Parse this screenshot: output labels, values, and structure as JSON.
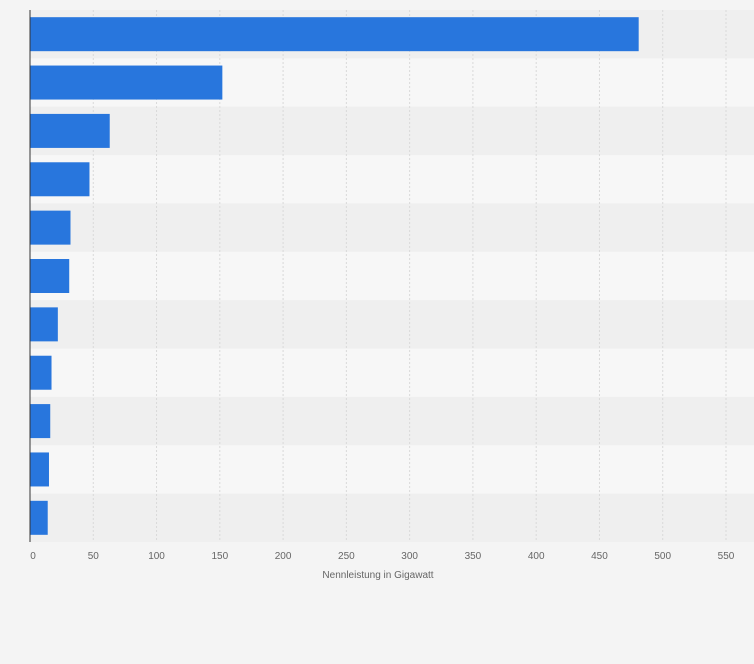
{
  "chart_data": {
    "type": "bar",
    "orientation": "horizontal",
    "categories": [
      "",
      "",
      "",
      "",
      "",
      "",
      "",
      "",
      "",
      "",
      ""
    ],
    "values": [
      481,
      152,
      63,
      47,
      32,
      31,
      22,
      17,
      16,
      15,
      14
    ],
    "title": "",
    "xlabel": "Nennleistung in Gigawatt",
    "ylabel": "",
    "xlim": [
      0,
      550
    ],
    "xticks": [
      0,
      50,
      100,
      150,
      200,
      250,
      300,
      350,
      400,
      450,
      500,
      550
    ],
    "grid": "vertical dashed",
    "legend": "none",
    "colors": {
      "bar": "#2876dd",
      "background": "#f4f4f4",
      "band_dark": "#efefef",
      "band_light": "#f7f7f7",
      "grid": "#d9d9d9",
      "axis": "#333333",
      "tick_text": "#666666"
    }
  }
}
